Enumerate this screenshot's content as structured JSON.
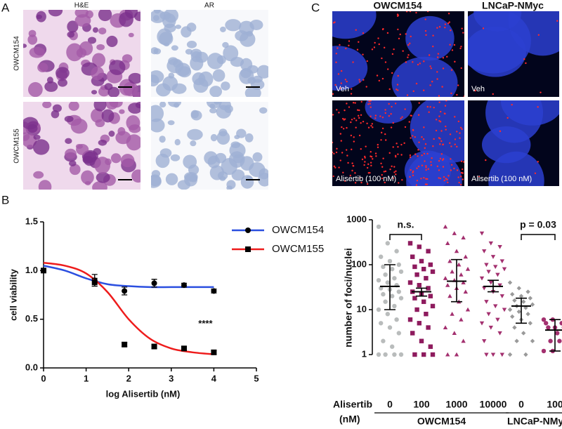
{
  "panel_labels": [
    "A",
    "B",
    "C"
  ],
  "panel_a": {
    "columns": [
      "H&E",
      "AR"
    ],
    "rows": [
      "OWCM154",
      "OWCM155"
    ]
  },
  "panel_c": {
    "columns": [
      "OWCM154",
      "LNCaP-NMyc"
    ],
    "captions": [
      [
        "Veh",
        "Veh"
      ],
      [
        "Alisertib (100 nM)",
        "Alisertib (100 nM)"
      ]
    ]
  },
  "chart_data": [
    {
      "type": "line",
      "xlabel": "log Alisertib (nM)",
      "ylabel": "cell viability",
      "xlim": [
        0,
        5
      ],
      "ylim": [
        0,
        1.5
      ],
      "xticks": [
        0,
        1,
        2,
        3,
        4,
        5
      ],
      "yticks": [
        {
          "value": 0,
          "label": "0.0"
        },
        {
          "value": 0.5,
          "label": "0.5"
        },
        {
          "value": 1,
          "label": "1.0"
        },
        {
          "value": 1.5,
          "label": "1.5"
        }
      ],
      "legend": "upper right",
      "annotation": "****",
      "series": [
        {
          "name": "OWCM154",
          "color": "#2b4fe0",
          "marker": "circle",
          "x": [
            0,
            1.2,
            1.9,
            2.6,
            3.3,
            4
          ],
          "values": [
            1.0,
            0.9,
            0.79,
            0.87,
            0.85,
            0.79
          ],
          "errors": [
            0.02,
            0.06,
            0.04,
            0.04,
            0.02,
            0.02
          ],
          "fit_x": [
            0,
            0.5,
            1,
            1.5,
            2,
            2.5,
            3,
            3.5,
            4
          ],
          "fit_values": [
            1.05,
            1.0,
            0.92,
            0.86,
            0.84,
            0.83,
            0.83,
            0.83,
            0.83
          ]
        },
        {
          "name": "OWCM155",
          "color": "#ee1c1c",
          "marker": "square",
          "x": [
            0,
            1.2,
            1.9,
            2.6,
            3.3,
            4
          ],
          "values": [
            1.0,
            0.88,
            0.24,
            0.22,
            0.2,
            0.16
          ],
          "errors": [
            0.02,
            0.04,
            0.02,
            0.02,
            0.02,
            0.02
          ],
          "fit_x": [
            0,
            0.5,
            1,
            1.5,
            2,
            2.5,
            3,
            3.5,
            4
          ],
          "fit_values": [
            1.08,
            1.05,
            0.97,
            0.78,
            0.5,
            0.3,
            0.2,
            0.16,
            0.14
          ]
        }
      ]
    },
    {
      "type": "dot",
      "ylabel": "number of foci/nuclei",
      "log_y": true,
      "ylim": [
        1,
        1000
      ],
      "yticks": [
        1,
        10,
        100,
        1000
      ],
      "treatment_label": [
        "Alisertib",
        "(nM)"
      ],
      "categories": [
        "0",
        "100",
        "1000",
        "10000",
        "0",
        "100"
      ],
      "cell_lines": [
        "OWCM154",
        "OWCM154",
        "OWCM154",
        "OWCM154",
        "LNCaP-NMyc",
        "LNCaP-NMyc"
      ],
      "colors": [
        "#b9bcbc",
        "#8e1b5e",
        "#a3306f",
        "#a3306f",
        "#9a9a9a",
        "#a3306f"
      ],
      "markers": [
        "circle",
        "square",
        "triangle",
        "triangle-down",
        "diamond",
        "circle"
      ],
      "points": [
        [
          700,
          300,
          200,
          150,
          120,
          100,
          90,
          80,
          70,
          60,
          50,
          45,
          40,
          35,
          30,
          28,
          25,
          22,
          20,
          18,
          15,
          12,
          10,
          8,
          6,
          5,
          4,
          3,
          2,
          1.5,
          1,
          1,
          1,
          1
        ],
        [
          300,
          250,
          200,
          150,
          120,
          100,
          90,
          80,
          70,
          60,
          50,
          40,
          35,
          30,
          25,
          22,
          20,
          18,
          15,
          12,
          10,
          8,
          6,
          5,
          4,
          3,
          2,
          1.5,
          1,
          1,
          1
        ],
        [
          700,
          500,
          400,
          300,
          200,
          150,
          120,
          100,
          80,
          70,
          60,
          50,
          45,
          40,
          35,
          30,
          25,
          20,
          15,
          10,
          8,
          6,
          4,
          3,
          2,
          1,
          1
        ],
        [
          500,
          300,
          250,
          200,
          150,
          120,
          100,
          90,
          80,
          70,
          60,
          50,
          40,
          35,
          30,
          25,
          20,
          15,
          12,
          10,
          8,
          6,
          5,
          4,
          3,
          2,
          1,
          1,
          1
        ],
        [
          40,
          30,
          25,
          22,
          20,
          18,
          16,
          15,
          13,
          12,
          11,
          10,
          9,
          8,
          7,
          6,
          5,
          4,
          3,
          2,
          2,
          1,
          1
        ],
        [
          6,
          6,
          5,
          5,
          4,
          4,
          4,
          3,
          3,
          2,
          2,
          1.2,
          1.2
        ]
      ],
      "medians": [
        33,
        25,
        43,
        33,
        12,
        3.5
      ],
      "lower": [
        10,
        20,
        15,
        25,
        5,
        1.2
      ],
      "upper": [
        100,
        30,
        130,
        45,
        18,
        6
      ],
      "comparisons": [
        {
          "label": "n.s.",
          "pair": [
            0,
            1
          ]
        },
        {
          "label": "p = 0.03",
          "pair": [
            4,
            5
          ]
        }
      ]
    }
  ]
}
